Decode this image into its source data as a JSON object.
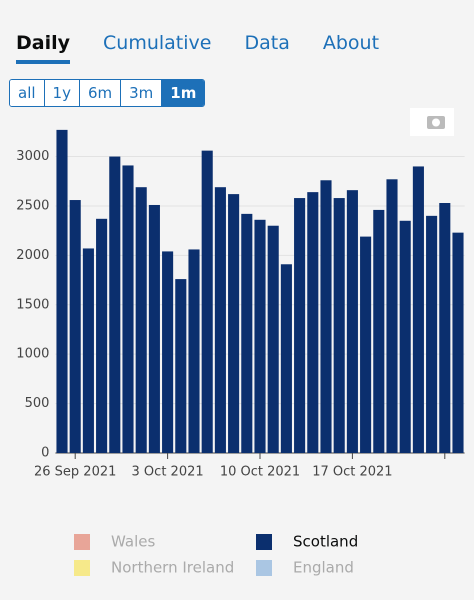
{
  "tabs": {
    "items": [
      "Daily",
      "Cumulative",
      "Data",
      "About"
    ],
    "active": 0
  },
  "range_buttons": {
    "items": [
      "all",
      "1y",
      "6m",
      "3m",
      "1m"
    ],
    "active": 4
  },
  "chart_data": {
    "type": "bar",
    "categories": [
      null,
      "26 Sep 2021",
      null,
      null,
      null,
      null,
      null,
      null,
      "3 Oct 2021",
      null,
      null,
      null,
      null,
      null,
      null,
      "10 Oct 2021",
      null,
      null,
      null,
      null,
      null,
      null,
      "17 Oct 2021",
      null,
      null,
      null,
      null,
      null,
      null,
      null,
      null
    ],
    "series": [
      {
        "name": "Wales",
        "color": "#e8a598",
        "visible": false
      },
      {
        "name": "Scotland",
        "color": "#0b2f6e",
        "visible": true,
        "values": [
          3270,
          2560,
          2070,
          2370,
          3000,
          2910,
          2690,
          2510,
          2040,
          1760,
          2060,
          3060,
          2690,
          2620,
          2420,
          2360,
          2300,
          1910,
          2580,
          2640,
          2760,
          2580,
          2660,
          2190,
          2460,
          2770,
          2350,
          2900,
          2400,
          2530,
          2230
        ]
      },
      {
        "name": "Northern Ireland",
        "color": "#f6e98a",
        "visible": false
      },
      {
        "name": "England",
        "color": "#aac6e3",
        "visible": false
      }
    ],
    "ylim": [
      0,
      3370
    ],
    "yticks": [
      0,
      500,
      1000,
      1500,
      2000,
      2500,
      3000
    ],
    "grid": true
  }
}
